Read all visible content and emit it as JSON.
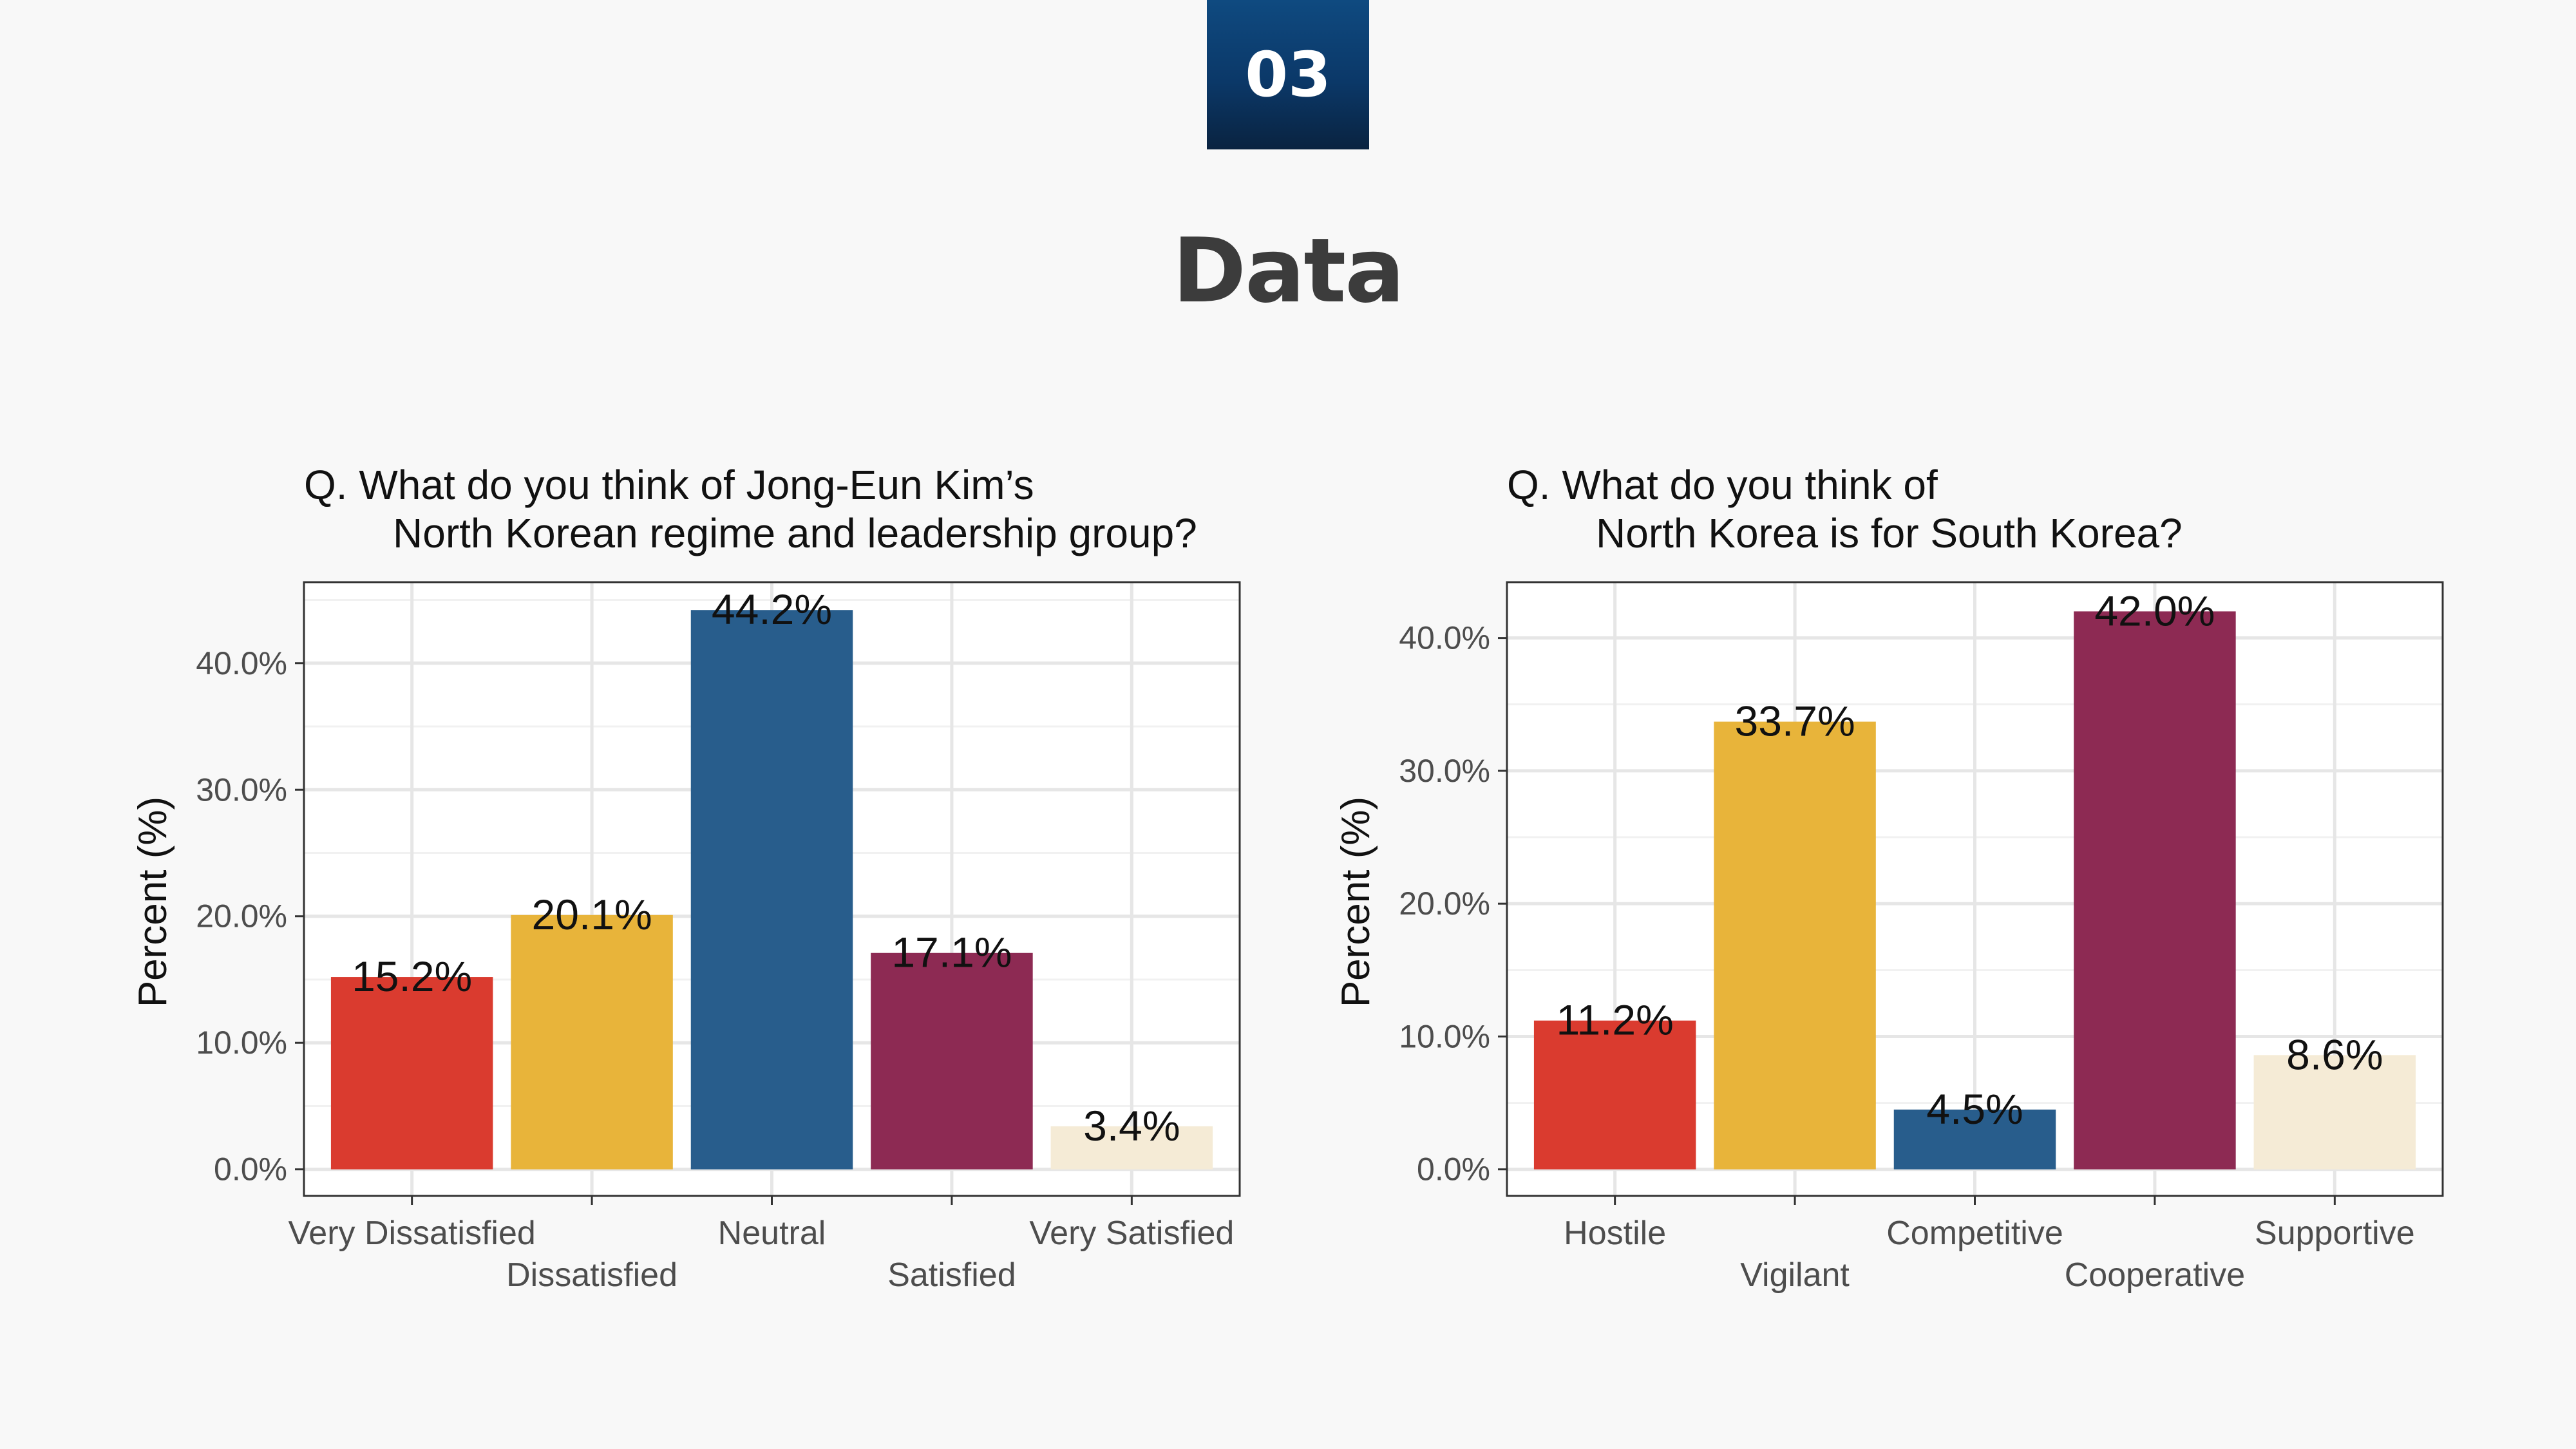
{
  "badge": "03",
  "title": "Data",
  "colors": {
    "background": "#f8f8f8",
    "badge": "#0b3868",
    "bars": [
      "#da3b2f",
      "#e8b43a",
      "#285d8c",
      "#8d2a53",
      "#f5ebd6"
    ]
  },
  "chart_data": [
    {
      "type": "bar",
      "question_lines": [
        "Q. What do you think of Jong-Eun Kim’s",
        "North Korean regime and leadership group?"
      ],
      "ylabel": "Percent (%)",
      "xlabel": "",
      "categories": [
        "Very Dissatisfied",
        "Dissatisfied",
        "Neutral",
        "Satisfied",
        "Very Satisfied"
      ],
      "values": [
        15.2,
        20.1,
        44.2,
        17.1,
        3.4
      ],
      "labels": [
        "15.2%",
        "20.1%",
        "44.2%",
        "17.1%",
        "3.4%"
      ],
      "ylim": [
        -2.1,
        46.4
      ],
      "yticks": [
        0,
        10,
        20,
        30,
        40
      ],
      "ytick_labels": [
        "0.0%",
        "10.0%",
        "20.0%",
        "30.0%",
        "40.0%"
      ],
      "grid": true
    },
    {
      "type": "bar",
      "question_lines": [
        "Q. What do you think of",
        "North Korea is for South Korea?"
      ],
      "ylabel": "Percent (%)",
      "xlabel": "",
      "categories": [
        "Hostile",
        "Vigilant",
        "Competitive",
        "Cooperative",
        "Supportive"
      ],
      "values": [
        11.2,
        33.7,
        4.5,
        42.0,
        8.6
      ],
      "labels": [
        "11.2%",
        "33.7%",
        "4.5%",
        "42.0%",
        "8.6%"
      ],
      "ylim": [
        -2.0,
        44.2
      ],
      "yticks": [
        0,
        10,
        20,
        30,
        40
      ],
      "ytick_labels": [
        "0.0%",
        "10.0%",
        "20.0%",
        "30.0%",
        "40.0%"
      ],
      "grid": true
    }
  ]
}
